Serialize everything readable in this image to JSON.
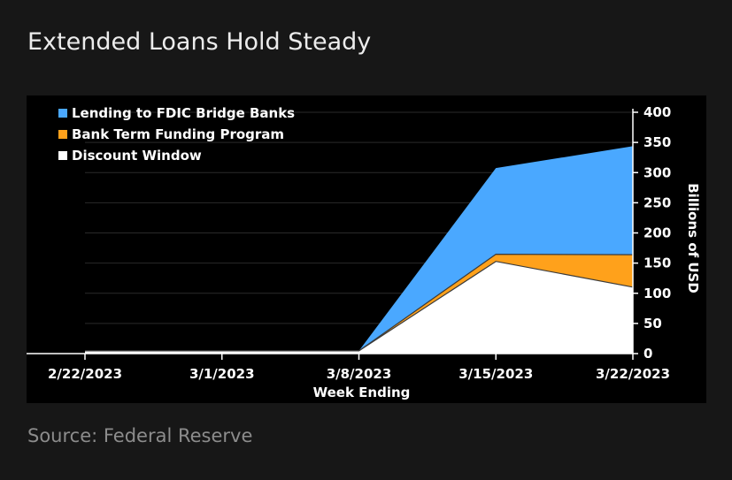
{
  "header": {
    "title": "Extended Loans Hold Steady"
  },
  "footer": {
    "source": "Source: Federal Reserve"
  },
  "colors": {
    "background": "#171717",
    "plot_background": "#000000",
    "lending_fdic": "#4aa8ff",
    "btfp": "#ffa11b",
    "discount_window": "#ffffff",
    "gridline": "#2a2a2a"
  },
  "chart_data": {
    "type": "area",
    "stacked": true,
    "categories": [
      "2/22/2023",
      "3/1/2023",
      "3/8/2023",
      "3/15/2023",
      "3/22/2023"
    ],
    "series": [
      {
        "name": "Discount Window",
        "values": [
          4.6,
          4.6,
          4.6,
          152.8,
          110.2
        ],
        "color": "#ffffff"
      },
      {
        "name": "Bank Term Funding Program",
        "values": [
          0,
          0,
          0,
          11.9,
          53.7
        ],
        "color": "#ffa11b"
      },
      {
        "name": "Lending to FDIC Bridge Banks",
        "values": [
          0,
          0,
          0,
          142.8,
          179.8
        ],
        "color": "#4aa8ff"
      }
    ],
    "legend_order": [
      "Lending to FDIC Bridge Banks",
      "Bank Term Funding Program",
      "Discount Window"
    ],
    "legend_position": "top-left",
    "xlabel": "Week Ending",
    "ylabel": "Billions of USD",
    "ylim": [
      0,
      400
    ],
    "yticks": [
      0,
      50,
      100,
      150,
      200,
      250,
      300,
      350,
      400
    ],
    "y_axis_side": "right",
    "grid": true
  }
}
